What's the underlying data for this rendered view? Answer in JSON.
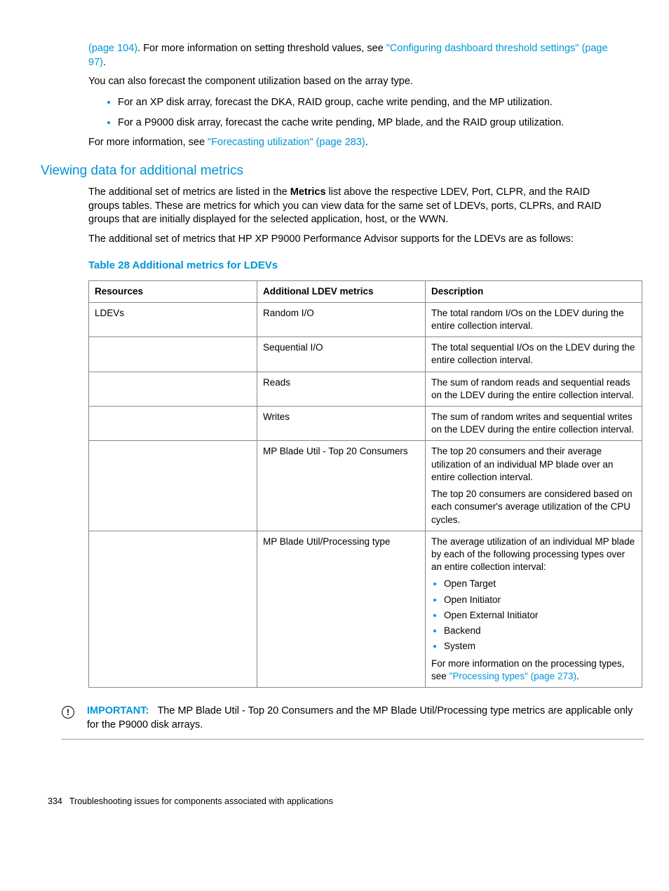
{
  "intro": {
    "continued_link_1": "(page 104)",
    "continued_text_1": ". For more information on setting threshold values, see ",
    "continued_link_2": "\"Configuring dashboard threshold settings\" (page 97)",
    "continued_text_2": ".",
    "forecast_line": "You can also forecast the component utilization based on the array type.",
    "bullets": [
      "For an XP disk array, forecast the DKA, RAID group, cache write pending, and the MP utilization.",
      "For a P9000 disk array, forecast the cache write pending, MP blade, and the RAID group utilization."
    ],
    "more_info_prefix": "For more information, see ",
    "more_info_link": "\"Forecasting utilization\" (page 283)",
    "more_info_suffix": "."
  },
  "section_heading": "Viewing data for additional metrics",
  "section_para_1a": "The additional set of metrics are listed in the ",
  "section_para_1bold": "Metrics",
  "section_para_1b": " list above the respective LDEV, Port, CLPR, and the RAID groups tables. These are metrics for which you can view data for the same set of LDEVs, ports, CLPRs, and RAID groups that are initially displayed for the selected application, host, or the WWN.",
  "section_para_2": "The additional set of metrics that HP XP P9000 Performance Advisor supports for the LDEVs are as follows:",
  "table": {
    "caption": "Table 28 Additional metrics for LDEVs",
    "headers": [
      "Resources",
      "Additional LDEV metrics",
      "Description"
    ],
    "rows": [
      {
        "resource": "LDEVs",
        "metric": "Random I/O",
        "desc": [
          {
            "type": "p",
            "text": "The total random I/Os on the LDEV during the entire collection interval."
          }
        ]
      },
      {
        "resource": "",
        "metric": "Sequential I/O",
        "desc": [
          {
            "type": "p",
            "text": "The total sequential I/Os on the LDEV during the entire collection interval."
          }
        ]
      },
      {
        "resource": "",
        "metric": "Reads",
        "desc": [
          {
            "type": "p",
            "text": "The sum of random reads and sequential reads on the LDEV during the entire collection interval."
          }
        ]
      },
      {
        "resource": "",
        "metric": "Writes",
        "desc": [
          {
            "type": "p",
            "text": "The sum of random writes and sequential writes on the LDEV during the entire collection interval."
          }
        ]
      },
      {
        "resource": "",
        "metric": "MP Blade Util - Top 20 Consumers",
        "desc": [
          {
            "type": "p",
            "text": "The top 20 consumers and their average utilization of an individual MP blade over an entire collection interval."
          },
          {
            "type": "p",
            "text": "The top 20 consumers are considered based on each consumer's average utilization of the CPU cycles."
          }
        ]
      },
      {
        "resource": "",
        "metric": "MP Blade Util/Processing type",
        "desc": [
          {
            "type": "p",
            "text": "The average utilization of an individual MP blade by each of the following processing types over an entire collection interval:"
          },
          {
            "type": "ul",
            "items": [
              "Open Target",
              "Open Initiator",
              "Open External Initiator",
              "Backend",
              "System"
            ]
          },
          {
            "type": "pl",
            "prefix": "For more information on the processing types, see ",
            "link": "\"Processing types\" (page 273)",
            "suffix": "."
          }
        ]
      }
    ]
  },
  "important": {
    "label": "IMPORTANT:",
    "text": "The MP Blade Util - Top 20 Consumers and the MP Blade Util/Processing type metrics are applicable only for the P9000 disk arrays."
  },
  "footer": {
    "page": "334",
    "title": "Troubleshooting issues for components associated with applications"
  }
}
